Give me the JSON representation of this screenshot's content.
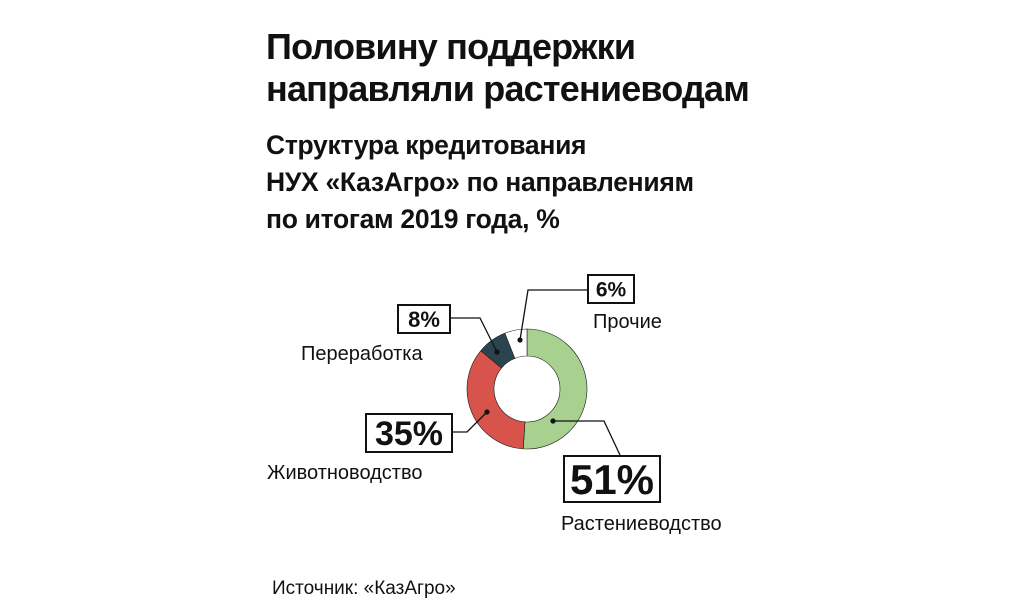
{
  "title_lines": [
    "Половину поддержки",
    "направляли растениеводам"
  ],
  "subtitle_lines": [
    "Структура кредитования",
    "НУХ «КазАгро» по направлениям",
    "по итогам 2019 года, %"
  ],
  "source": "Источник: «КазАгро»",
  "chart_data": {
    "type": "pie",
    "variant": "donut",
    "title": "Структура кредитования НУХ «КазАгро» по направлениям по итогам 2019 года, %",
    "unit": "%",
    "slices": [
      {
        "label": "Растениеводство",
        "value": 51,
        "value_label": "51%",
        "color": "#a8d190"
      },
      {
        "label": "Животноводство",
        "value": 35,
        "value_label": "35%",
        "color": "#d9534d"
      },
      {
        "label": "Переработка",
        "value": 8,
        "value_label": "8%",
        "color": "#2b4550"
      },
      {
        "label": "Прочие",
        "value": 6,
        "value_label": "6%",
        "color": "#ffffff"
      }
    ]
  }
}
